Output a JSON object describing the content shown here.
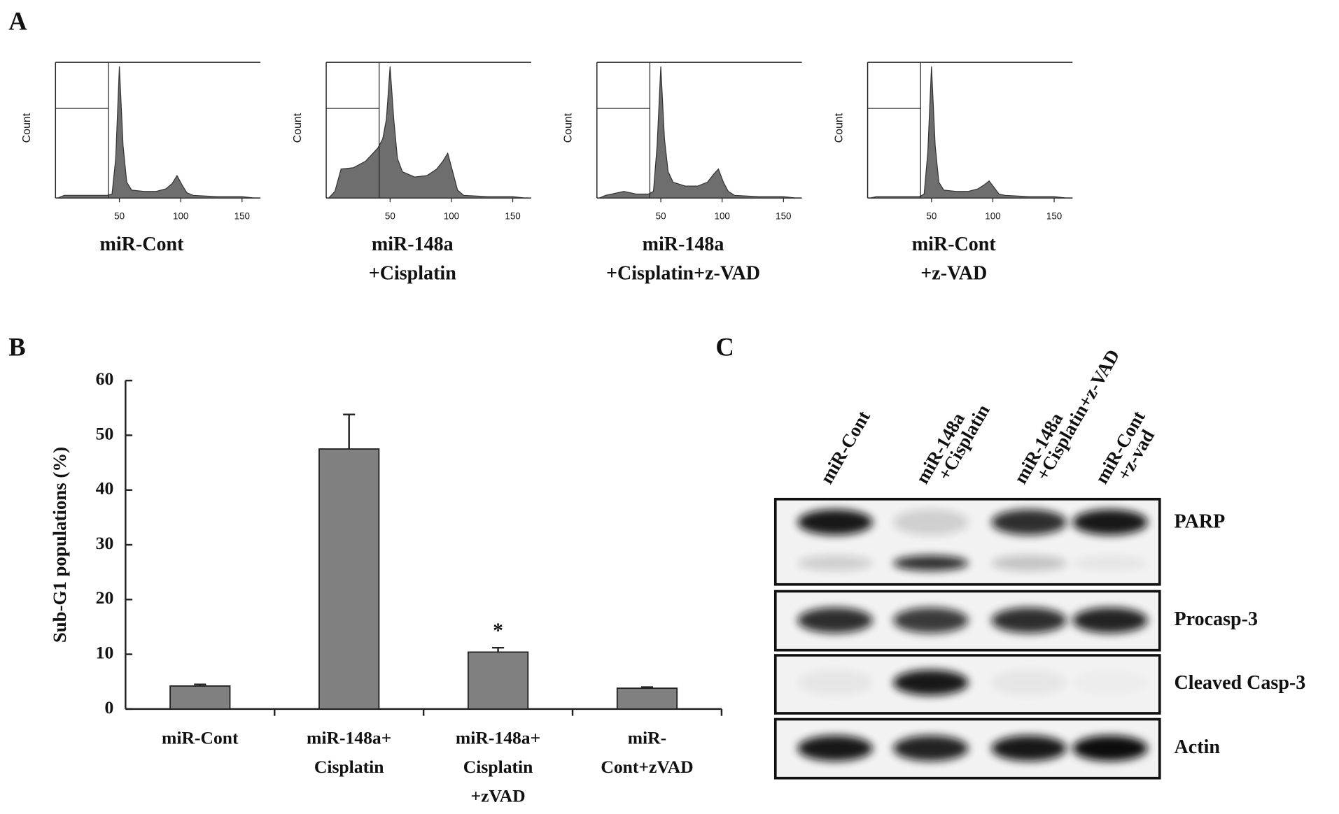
{
  "panel_labels": [
    "A",
    "B",
    "C"
  ],
  "chart_data": [
    {
      "type": "area",
      "ylabel": "Count",
      "caption": [
        "miR-Cont"
      ],
      "color": "#555555",
      "x": [
        0,
        5,
        10,
        20,
        30,
        40,
        44,
        47,
        50,
        53,
        56,
        60,
        70,
        80,
        88,
        93,
        97,
        101,
        105,
        110,
        130,
        150,
        160
      ],
      "values": [
        0,
        2,
        2,
        2,
        2,
        2,
        3,
        30,
        100,
        40,
        12,
        6,
        5,
        5,
        7,
        11,
        17,
        10,
        4,
        2,
        1,
        1,
        0
      ],
      "xlim": [
        0,
        165
      ],
      "ylim": [
        0,
        100
      ],
      "xticks": [
        50,
        100,
        150
      ]
    },
    {
      "type": "area",
      "ylabel": "Count",
      "caption": [
        "miR-148a",
        "+Cisplatin"
      ],
      "color": "#555555",
      "x": [
        0,
        5,
        10,
        20,
        30,
        40,
        44,
        47,
        50,
        53,
        56,
        60,
        70,
        80,
        88,
        93,
        97,
        101,
        105,
        110,
        130,
        150,
        160
      ],
      "values": [
        0,
        5,
        22,
        23,
        28,
        38,
        45,
        60,
        100,
        60,
        30,
        20,
        16,
        17,
        22,
        28,
        34,
        20,
        6,
        2,
        1,
        1,
        0
      ],
      "xlim": [
        0,
        165
      ],
      "ylim": [
        0,
        100
      ],
      "xticks": [
        50,
        100,
        150
      ]
    },
    {
      "type": "area",
      "ylabel": "Count",
      "caption": [
        "miR-148a",
        "+Cisplatin+z-VAD"
      ],
      "color": "#555555",
      "x": [
        0,
        5,
        10,
        20,
        30,
        40,
        44,
        47,
        50,
        53,
        56,
        60,
        70,
        80,
        88,
        93,
        97,
        101,
        105,
        110,
        130,
        150,
        160
      ],
      "values": [
        0,
        2,
        3,
        5,
        3,
        3,
        5,
        40,
        100,
        45,
        20,
        12,
        9,
        9,
        12,
        18,
        22,
        12,
        5,
        2,
        1,
        1,
        0
      ],
      "xlim": [
        0,
        165
      ],
      "ylim": [
        0,
        100
      ],
      "xticks": [
        50,
        100,
        150
      ]
    },
    {
      "type": "area",
      "ylabel": "Count",
      "caption": [
        "miR-Cont",
        "+z-VAD"
      ],
      "color": "#555555",
      "x": [
        0,
        5,
        10,
        20,
        30,
        40,
        44,
        47,
        50,
        53,
        56,
        60,
        70,
        80,
        88,
        93,
        97,
        101,
        105,
        110,
        130,
        150,
        160
      ],
      "values": [
        0,
        1,
        1,
        1,
        1,
        1,
        3,
        35,
        100,
        40,
        12,
        6,
        5,
        5,
        7,
        10,
        13,
        8,
        3,
        2,
        1,
        1,
        0
      ],
      "xlim": [
        0,
        165
      ],
      "ylim": [
        0,
        100
      ],
      "xticks": [
        50,
        100,
        150
      ]
    },
    {
      "type": "bar",
      "ylabel": "Sub-G1 populations (%)",
      "color": "#808080",
      "categories": [
        [
          "miR-Cont"
        ],
        [
          "miR-148a+",
          "Cisplatin"
        ],
        [
          "miR-148a+",
          "Cisplatin",
          "+zVAD"
        ],
        [
          "miR-",
          "Cont+zVAD"
        ]
      ],
      "values": [
        4.2,
        47.5,
        10.4,
        3.8
      ],
      "errors": [
        0.3,
        6.3,
        0.8,
        0.2
      ],
      "annotations": [
        null,
        null,
        "*",
        null
      ],
      "ylim": [
        0,
        60
      ],
      "yticks": [
        0,
        10,
        20,
        30,
        40,
        50,
        60
      ]
    }
  ],
  "blot": {
    "lanes": [
      [
        "miR-Cont"
      ],
      [
        "miR-148a",
        "+Cisplatin"
      ],
      [
        "miR-148a",
        "+Cisplatin+z-VAD"
      ],
      [
        "miR-Cont",
        "+z-vad"
      ]
    ],
    "rows": [
      "PARP",
      "Procasp-3",
      "Cleaved Casp-3",
      "Actin"
    ]
  }
}
